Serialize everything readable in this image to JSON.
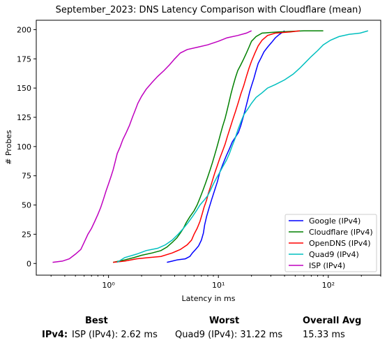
{
  "chart_data": {
    "type": "line",
    "title": "September_2023: DNS Latency Comparison with Cloudflare (mean)",
    "xlabel": "Latency in ms",
    "ylabel": "# Probes",
    "xscale": "log",
    "xlim": [
      0.22,
      300
    ],
    "ylim": [
      -10,
      208
    ],
    "xticks": [
      1,
      10,
      100
    ],
    "xtick_labels": [
      "10⁰",
      "10¹",
      "10²"
    ],
    "yticks": [
      0,
      25,
      50,
      75,
      100,
      125,
      150,
      175,
      200
    ],
    "grid": false,
    "legend": "bottom-right",
    "series": [
      {
        "name": "Google (IPv4)",
        "color": "#0000ff",
        "points": [
          [
            3.4,
            1
          ],
          [
            3.8,
            2
          ],
          [
            4.2,
            3
          ],
          [
            5.0,
            4
          ],
          [
            5.5,
            6
          ],
          [
            5.8,
            9
          ],
          [
            6.2,
            12
          ],
          [
            6.6,
            15
          ],
          [
            7.0,
            20
          ],
          [
            7.3,
            26
          ],
          [
            7.5,
            33
          ],
          [
            7.8,
            40
          ],
          [
            8.2,
            47
          ],
          [
            8.7,
            55
          ],
          [
            9.2,
            62
          ],
          [
            9.8,
            70
          ],
          [
            10.3,
            78
          ],
          [
            11.0,
            85
          ],
          [
            11.8,
            92
          ],
          [
            12.6,
            98
          ],
          [
            13.4,
            104
          ],
          [
            14.3,
            108
          ],
          [
            15.2,
            112
          ],
          [
            16.0,
            118
          ],
          [
            16.8,
            125
          ],
          [
            17.6,
            132
          ],
          [
            18.5,
            140
          ],
          [
            19.3,
            147
          ],
          [
            20.0,
            152
          ],
          [
            21.0,
            158
          ],
          [
            22.0,
            165
          ],
          [
            23.0,
            171
          ],
          [
            24.5,
            176
          ],
          [
            26.0,
            181
          ],
          [
            28.0,
            185
          ],
          [
            30.5,
            189
          ],
          [
            33.0,
            193
          ],
          [
            36.0,
            196
          ],
          [
            40.0,
            199
          ]
        ]
      },
      {
        "name": "Cloudflare (IPv4)",
        "color": "#008000",
        "points": [
          [
            1.1,
            1
          ],
          [
            1.4,
            3
          ],
          [
            1.7,
            5
          ],
          [
            2.0,
            7
          ],
          [
            2.5,
            9
          ],
          [
            3.0,
            11
          ],
          [
            3.4,
            14
          ],
          [
            3.8,
            18
          ],
          [
            4.2,
            22
          ],
          [
            4.5,
            26
          ],
          [
            4.8,
            30
          ],
          [
            5.1,
            35
          ],
          [
            5.5,
            40
          ],
          [
            6.0,
            45
          ],
          [
            6.4,
            50
          ],
          [
            6.8,
            56
          ],
          [
            7.2,
            62
          ],
          [
            7.6,
            68
          ],
          [
            8.0,
            74
          ],
          [
            8.4,
            80
          ],
          [
            8.8,
            86
          ],
          [
            9.2,
            92
          ],
          [
            9.6,
            98
          ],
          [
            10.0,
            104
          ],
          [
            10.4,
            110
          ],
          [
            10.9,
            117
          ],
          [
            11.5,
            124
          ],
          [
            12.0,
            131
          ],
          [
            12.5,
            138
          ],
          [
            13.0,
            145
          ],
          [
            13.6,
            152
          ],
          [
            14.3,
            159
          ],
          [
            15.0,
            165
          ],
          [
            16.0,
            170
          ],
          [
            17.0,
            175
          ],
          [
            18.0,
            180
          ],
          [
            19.0,
            185
          ],
          [
            20.0,
            190
          ],
          [
            22.0,
            194
          ],
          [
            25.0,
            197
          ],
          [
            35.0,
            198
          ],
          [
            60.0,
            199
          ],
          [
            90.0,
            199
          ]
        ]
      },
      {
        "name": "OpenDNS (IPv4)",
        "color": "#ff0000",
        "points": [
          [
            1.1,
            1
          ],
          [
            1.4,
            2
          ],
          [
            1.8,
            4
          ],
          [
            2.3,
            5
          ],
          [
            3.0,
            6
          ],
          [
            3.8,
            9
          ],
          [
            4.5,
            12
          ],
          [
            5.2,
            16
          ],
          [
            5.7,
            20
          ],
          [
            6.0,
            25
          ],
          [
            6.4,
            30
          ],
          [
            6.8,
            36
          ],
          [
            7.1,
            42
          ],
          [
            7.4,
            48
          ],
          [
            7.8,
            54
          ],
          [
            8.1,
            60
          ],
          [
            8.5,
            66
          ],
          [
            8.9,
            72
          ],
          [
            9.3,
            78
          ],
          [
            9.8,
            84
          ],
          [
            10.3,
            90
          ],
          [
            10.9,
            96
          ],
          [
            11.5,
            102
          ],
          [
            12.1,
            109
          ],
          [
            12.8,
            116
          ],
          [
            13.5,
            123
          ],
          [
            14.3,
            130
          ],
          [
            15.2,
            138
          ],
          [
            16.0,
            145
          ],
          [
            17.0,
            152
          ],
          [
            18.0,
            160
          ],
          [
            19.0,
            167
          ],
          [
            20.0,
            173
          ],
          [
            21.5,
            180
          ],
          [
            23.0,
            186
          ],
          [
            25.0,
            191
          ],
          [
            28.0,
            195
          ],
          [
            33.0,
            197
          ],
          [
            45.0,
            198
          ],
          [
            55.0,
            199
          ]
        ]
      },
      {
        "name": "Quad9 (IPv4)",
        "color": "#00bfbf",
        "points": [
          [
            1.2,
            1
          ],
          [
            1.4,
            5
          ],
          [
            1.8,
            8
          ],
          [
            2.2,
            11
          ],
          [
            2.8,
            13
          ],
          [
            3.3,
            16
          ],
          [
            3.8,
            20
          ],
          [
            4.3,
            25
          ],
          [
            4.8,
            30
          ],
          [
            5.3,
            35
          ],
          [
            5.8,
            40
          ],
          [
            6.3,
            45
          ],
          [
            6.8,
            50
          ],
          [
            7.4,
            54
          ],
          [
            8.0,
            58
          ],
          [
            8.5,
            63
          ],
          [
            9.0,
            68
          ],
          [
            9.6,
            73
          ],
          [
            10.3,
            78
          ],
          [
            11.0,
            83
          ],
          [
            11.8,
            88
          ],
          [
            12.6,
            94
          ],
          [
            13.3,
            100
          ],
          [
            14.2,
            107
          ],
          [
            15.0,
            114
          ],
          [
            16.0,
            121
          ],
          [
            17.0,
            127
          ],
          [
            18.5,
            132
          ],
          [
            20.0,
            137
          ],
          [
            22.0,
            142
          ],
          [
            25.0,
            146
          ],
          [
            28.0,
            150
          ],
          [
            33.0,
            153
          ],
          [
            40.0,
            157
          ],
          [
            48.0,
            162
          ],
          [
            55.0,
            167
          ],
          [
            62.0,
            172
          ],
          [
            70.0,
            177
          ],
          [
            80.0,
            182
          ],
          [
            90.0,
            187
          ],
          [
            105.0,
            191
          ],
          [
            125.0,
            194
          ],
          [
            155.0,
            196
          ],
          [
            195.0,
            197
          ],
          [
            230.0,
            199
          ]
        ]
      },
      {
        "name": "ISP (IPv4)",
        "color": "#bf00bf",
        "points": [
          [
            0.31,
            1
          ],
          [
            0.38,
            2
          ],
          [
            0.44,
            4
          ],
          [
            0.5,
            8
          ],
          [
            0.56,
            12
          ],
          [
            0.6,
            18
          ],
          [
            0.65,
            25
          ],
          [
            0.7,
            30
          ],
          [
            0.75,
            36
          ],
          [
            0.8,
            42
          ],
          [
            0.85,
            48
          ],
          [
            0.9,
            55
          ],
          [
            0.95,
            62
          ],
          [
            1.0,
            68
          ],
          [
            1.05,
            74
          ],
          [
            1.1,
            80
          ],
          [
            1.15,
            87
          ],
          [
            1.2,
            94
          ],
          [
            1.28,
            100
          ],
          [
            1.35,
            106
          ],
          [
            1.45,
            112
          ],
          [
            1.55,
            118
          ],
          [
            1.65,
            125
          ],
          [
            1.75,
            131
          ],
          [
            1.85,
            137
          ],
          [
            2.0,
            143
          ],
          [
            2.2,
            149
          ],
          [
            2.5,
            155
          ],
          [
            2.8,
            160
          ],
          [
            3.2,
            165
          ],
          [
            3.6,
            170
          ],
          [
            4.0,
            175
          ],
          [
            4.5,
            180
          ],
          [
            5.2,
            183
          ],
          [
            6.5,
            185
          ],
          [
            8.0,
            187
          ],
          [
            10.0,
            190
          ],
          [
            12.0,
            193
          ],
          [
            15.0,
            195
          ],
          [
            18.0,
            197
          ],
          [
            20.0,
            199
          ]
        ]
      }
    ]
  },
  "summary": {
    "headers": {
      "best": "Best",
      "worst": "Worst",
      "avg": "Overall Avg"
    },
    "row_label": "IPv4:",
    "best": "ISP (IPv4): 2.62 ms",
    "worst": "Quad9 (IPv4): 31.22 ms",
    "avg": "15.33 ms"
  }
}
